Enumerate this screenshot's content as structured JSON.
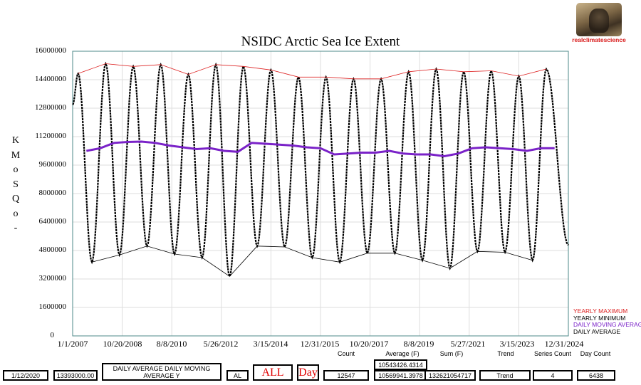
{
  "chart_data": {
    "type": "line",
    "title": "NSIDC Arctic Sea Ice Extent",
    "ylabel_chars": [
      "K",
      "M",
      "o",
      "S",
      "Q",
      "o",
      "-"
    ],
    "ylim": [
      0,
      16000000
    ],
    "y_ticks": [
      "16000000",
      "14400000",
      "12800000",
      "11200000",
      "9600000",
      "8000000",
      "6400000",
      "4800000",
      "3200000",
      "1600000",
      "0"
    ],
    "x_tick_labels": [
      "1/1/2007",
      "10/20/2008",
      "8/8/2010",
      "5/26/2012",
      "3/15/2014",
      "12/31/2015",
      "10/20/2017",
      "8/8/2019",
      "5/27/2021",
      "3/15/2023",
      "12/31/2024"
    ],
    "x_start": "2007-01-01",
    "x_end": "2024-12-31",
    "start_value": 13000000,
    "end_value": 5100000,
    "series": [
      {
        "name": "YEARLY MAXIMUM",
        "color": "#dd2222",
        "x_years": [
          2007.2,
          2008.2,
          2009.2,
          2010.2,
          2011.2,
          2012.2,
          2013.2,
          2014.2,
          2015.2,
          2016.2,
          2017.2,
          2018.2,
          2019.2,
          2020.2,
          2021.2,
          2022.2,
          2023.2,
          2024.2
        ],
        "values": [
          14750000,
          15300000,
          15150000,
          15250000,
          14700000,
          15250000,
          15150000,
          14950000,
          14550000,
          14550000,
          14450000,
          14450000,
          14850000,
          15000000,
          14850000,
          14900000,
          14600000,
          15000000
        ]
      },
      {
        "name": "YEARLY MINIMUM",
        "color": "#000000",
        "x_years": [
          2007.7,
          2008.7,
          2009.7,
          2010.7,
          2011.7,
          2012.7,
          2013.7,
          2014.7,
          2015.7,
          2016.7,
          2017.7,
          2018.7,
          2019.7,
          2020.7,
          2021.7,
          2022.7,
          2023.7
        ],
        "values": [
          4150000,
          4550000,
          5050000,
          4600000,
          4400000,
          3350000,
          5050000,
          5000000,
          4400000,
          4150000,
          4650000,
          4650000,
          4250000,
          3800000,
          4750000,
          4700000,
          4250000
        ]
      },
      {
        "name": "DAILY MOVING AVERAGE",
        "color": "#7a22c8",
        "x_years": [
          2007.5,
          2008.0,
          2008.5,
          2009.0,
          2009.5,
          2010.0,
          2010.5,
          2011.0,
          2011.5,
          2012.0,
          2012.5,
          2013.0,
          2013.5,
          2014.0,
          2014.5,
          2015.0,
          2015.5,
          2016.0,
          2016.5,
          2017.0,
          2017.5,
          2018.0,
          2018.5,
          2019.0,
          2019.5,
          2020.0,
          2020.5,
          2021.0,
          2021.5,
          2022.0,
          2022.5,
          2023.0,
          2023.5,
          2024.0,
          2024.5
        ],
        "values": [
          10400000,
          10550000,
          10850000,
          10900000,
          10920000,
          10850000,
          10700000,
          10600000,
          10500000,
          10550000,
          10400000,
          10350000,
          10850000,
          10800000,
          10750000,
          10700000,
          10600000,
          10550000,
          10200000,
          10250000,
          10300000,
          10300000,
          10400000,
          10250000,
          10200000,
          10200000,
          10100000,
          10250000,
          10550000,
          10600000,
          10550000,
          10500000,
          10400000,
          10550000,
          10550000
        ]
      },
      {
        "name": "DAILY AVERAGE",
        "color": "#000000"
      }
    ]
  },
  "logo": {
    "text": "realclimatescience"
  },
  "controls": {
    "headers": [
      "Count",
      "Average (F)",
      "Sum (F)",
      "Trend",
      "Series Count",
      "Day Count"
    ],
    "date": "1/12/2020",
    "value": "13393000.00",
    "series_select": "DAILY AVERAGE DAILY MOVING AVERAGE Y",
    "region": "AL",
    "range_button": "ALL",
    "period_button": "Day",
    "count": "12547",
    "average_top": "10543426.4314",
    "average_bottom": "10569941.3978",
    "sum": "132621054717",
    "trend": "Trend",
    "series_count": "4",
    "day_count": "6438"
  }
}
